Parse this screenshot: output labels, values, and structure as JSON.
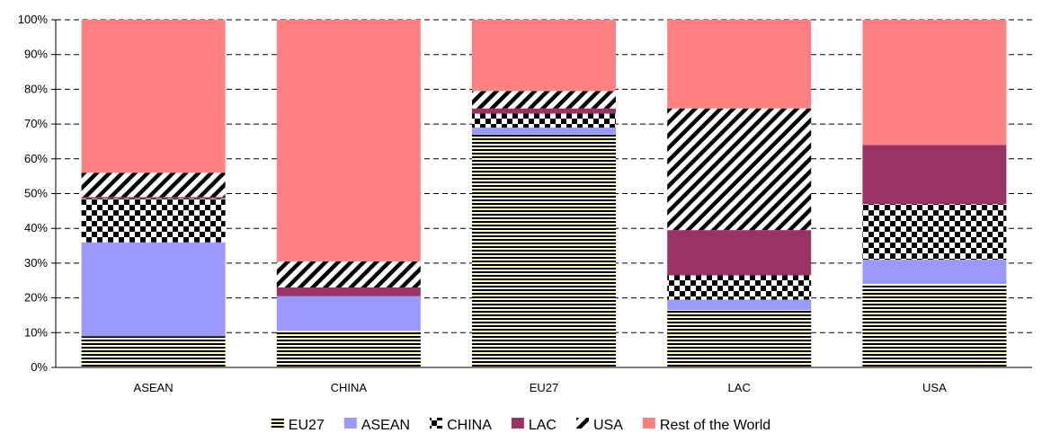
{
  "chart_data": {
    "type": "bar",
    "stacked": true,
    "percent": true,
    "categories": [
      "ASEAN",
      "CHINA",
      "EU27",
      "LAC",
      "USA"
    ],
    "series": [
      {
        "name": "EU27",
        "values": [
          9,
          10.5,
          67,
          16.5,
          24
        ],
        "color": "#fffdc8",
        "pattern": "horizontal-lines"
      },
      {
        "name": "ASEAN",
        "values": [
          27,
          10,
          2,
          3,
          7
        ],
        "color": "#9999ff",
        "pattern": "solid"
      },
      {
        "name": "CHINA",
        "values": [
          12.5,
          0,
          4,
          7,
          16
        ],
        "color": "#ffffff",
        "pattern": "checkerboard"
      },
      {
        "name": "LAC",
        "values": [
          0.5,
          2.5,
          1.5,
          13,
          17
        ],
        "color": "#993366",
        "pattern": "solid"
      },
      {
        "name": "USA",
        "values": [
          7,
          7.5,
          5,
          35,
          0
        ],
        "color": "#ffffff",
        "pattern": "diagonal-stripes"
      },
      {
        "name": "Rest of the World",
        "values": [
          44,
          69.5,
          20.5,
          25.5,
          36
        ],
        "color": "#ff8080",
        "pattern": "solid"
      }
    ],
    "yticks": [
      "0%",
      "10%",
      "20%",
      "30%",
      "40%",
      "50%",
      "60%",
      "70%",
      "80%",
      "90%",
      "100%"
    ],
    "ylim": [
      0,
      100
    ],
    "grid": "dashed-horizontal",
    "legend": "bottom"
  }
}
